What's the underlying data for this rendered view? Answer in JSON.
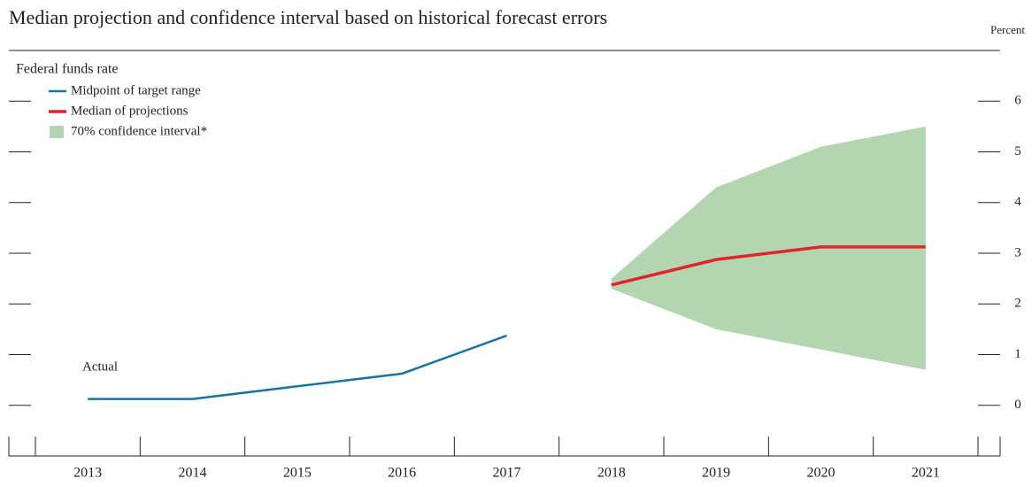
{
  "chart_data": {
    "type": "line",
    "title": "Median projection and confidence interval based on historical forecast errors",
    "y_axis_label": "Percent",
    "subtitle": "Federal funds rate",
    "annotations": [
      "Actual"
    ],
    "categories": [
      "2013",
      "2014",
      "2015",
      "2016",
      "2017",
      "2018",
      "2019",
      "2020",
      "2021"
    ],
    "series": [
      {
        "name": "Midpoint of target range",
        "color": "#1a73a6",
        "values": [
          0.125,
          0.125,
          0.375,
          0.625,
          1.375,
          null,
          null,
          null,
          null
        ]
      },
      {
        "name": "Median of projections",
        "color": "#e0262b",
        "values": [
          null,
          null,
          null,
          null,
          null,
          2.375,
          2.875,
          3.125,
          3.125
        ]
      }
    ],
    "bands": [
      {
        "name": "70% confidence interval*",
        "color": "#b3d5b0",
        "lower": [
          null,
          null,
          null,
          null,
          null,
          2.3,
          1.5,
          1.1,
          0.7
        ],
        "upper": [
          null,
          null,
          null,
          null,
          null,
          2.5,
          4.3,
          5.1,
          5.5
        ]
      }
    ],
    "ylim": [
      -1,
      7
    ],
    "yticks": [
      0,
      1,
      2,
      3,
      4,
      5,
      6
    ],
    "legend": "top-left"
  }
}
